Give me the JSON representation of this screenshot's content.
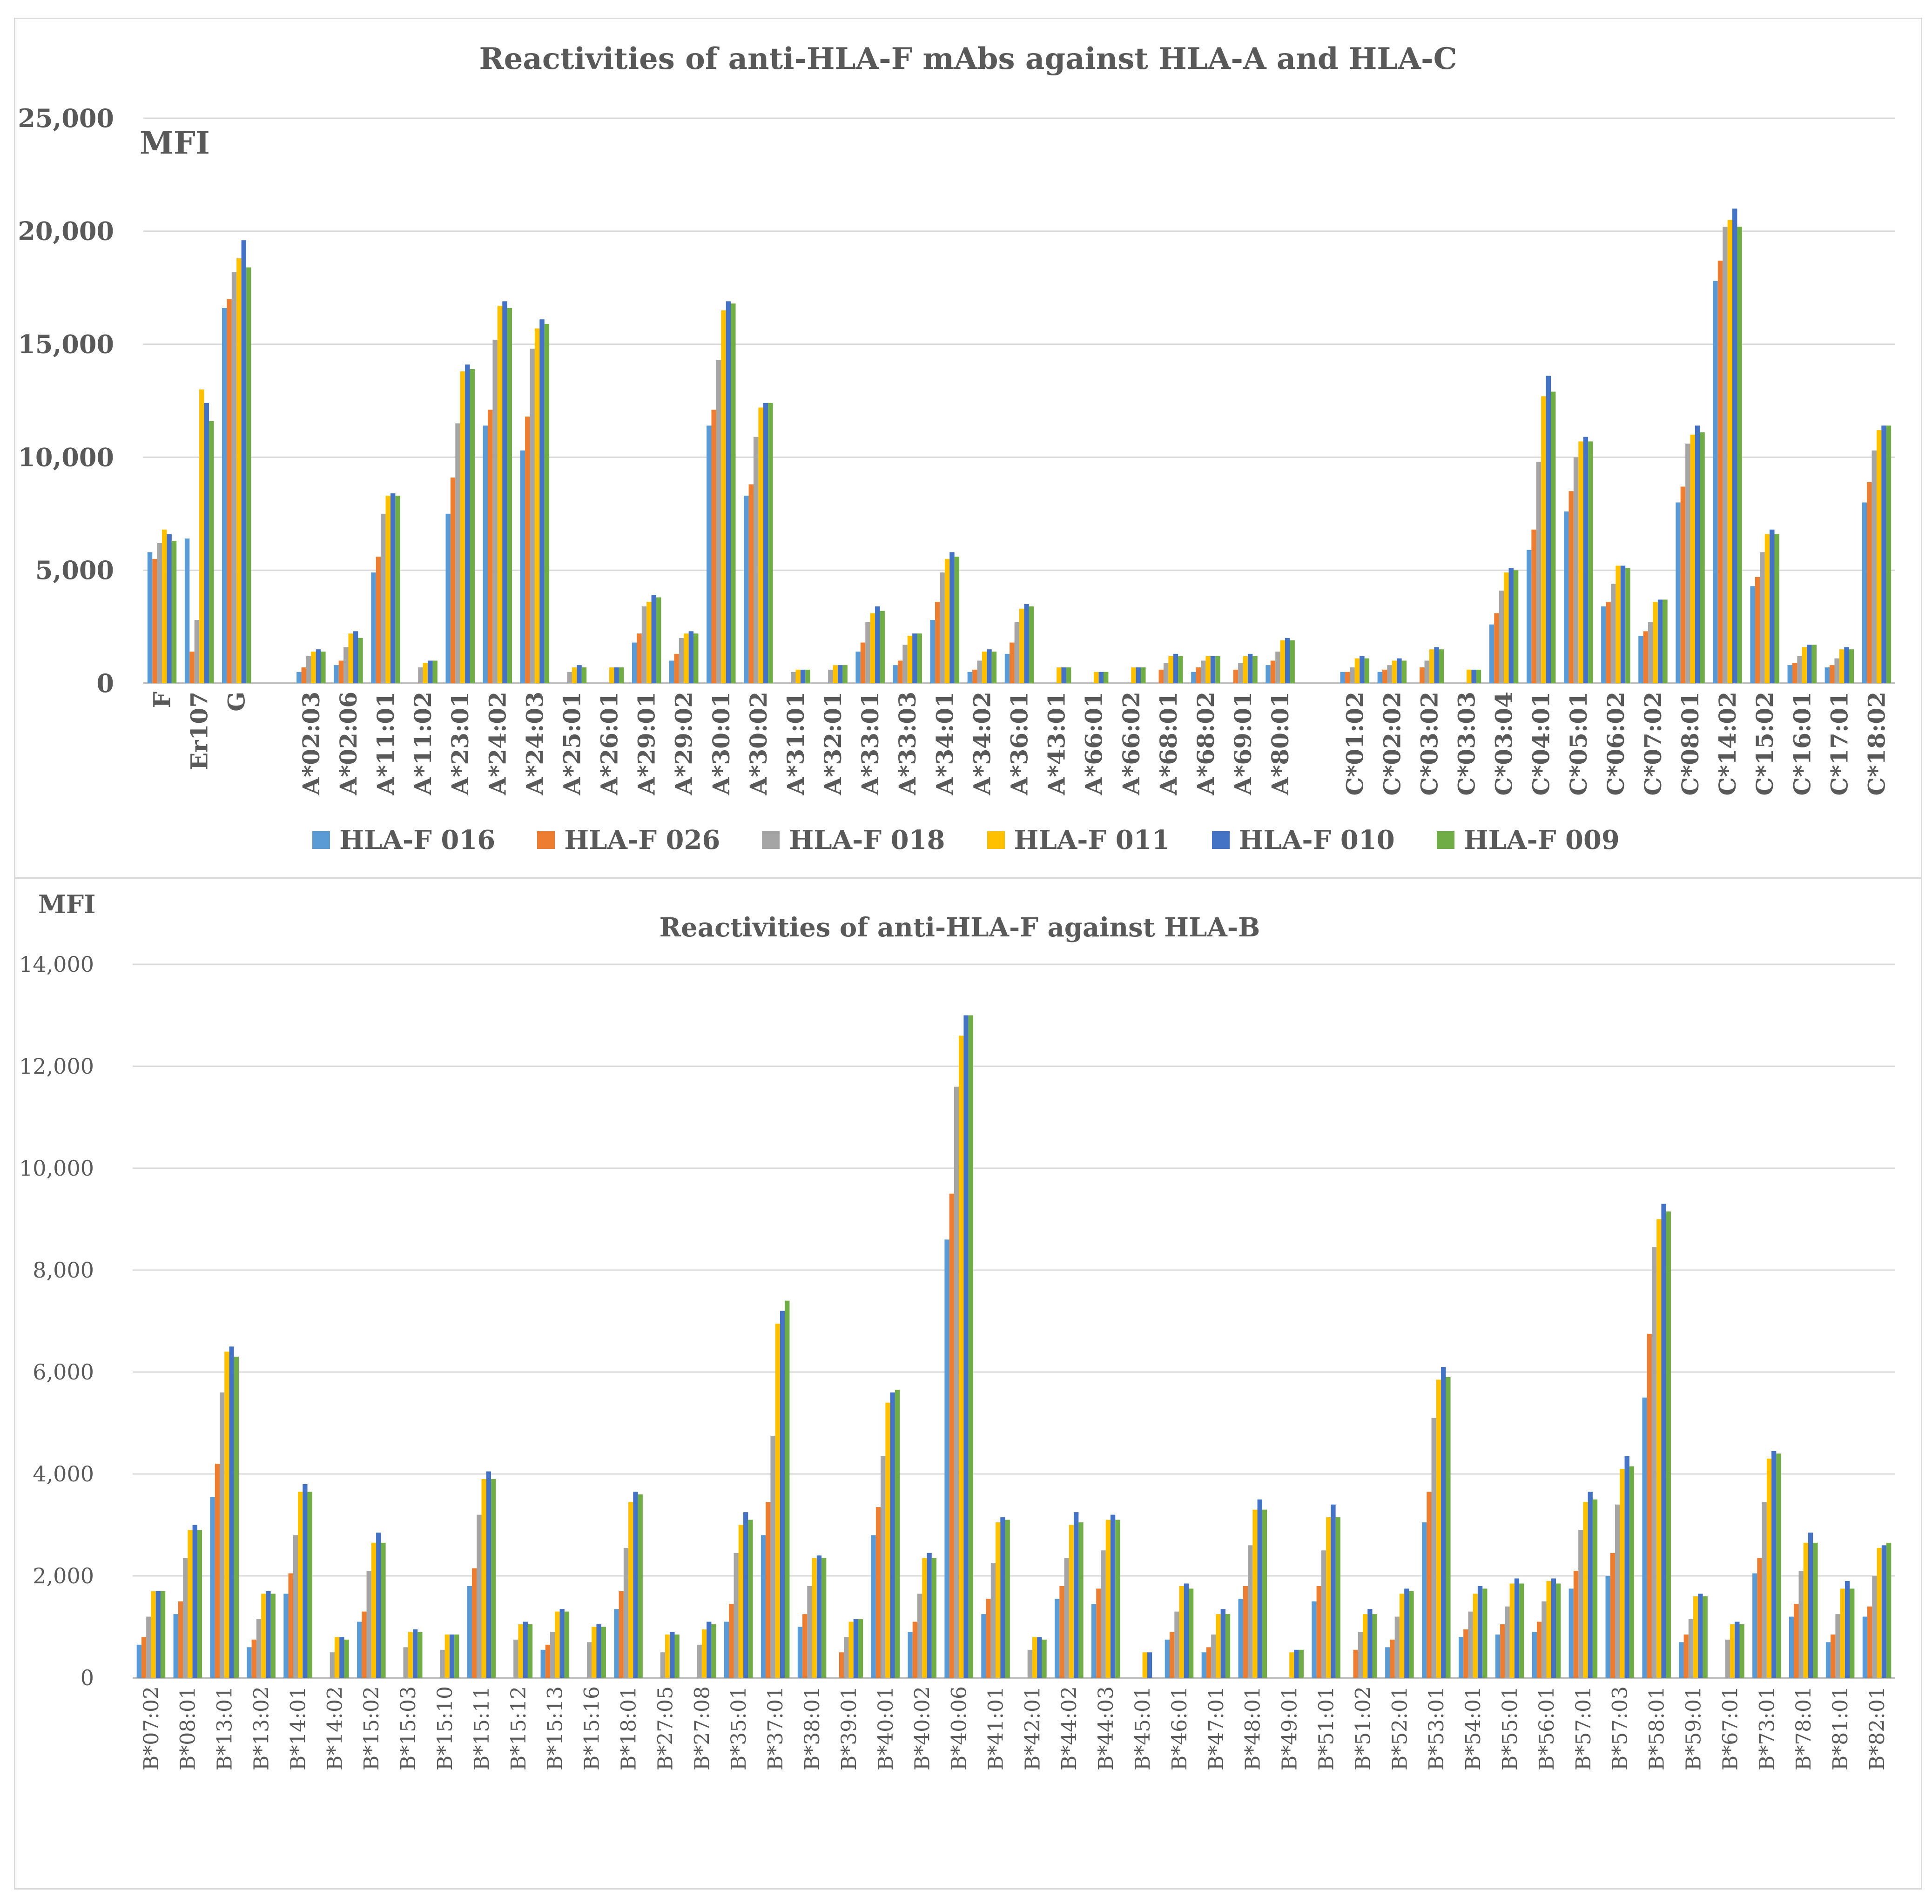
{
  "chart_data": [
    {
      "type": "bar",
      "title": "Reactivities of anti-HLA-F mAbs against HLA-A and HLA-C",
      "ylabel": "MFI",
      "xlabel": "",
      "ylim": [
        0,
        25000
      ],
      "yticks": [
        0,
        5000,
        10000,
        15000,
        20000,
        25000
      ],
      "ytick_labels": [
        "0",
        "5,000",
        "10,000",
        "15,000",
        "20,000",
        "25,000"
      ],
      "grid": true,
      "legend_position": "bottom",
      "series_names": [
        "HLA-F 016",
        "HLA-F 026",
        "HLA-F 018",
        "HLA-F 011",
        "HLA-F 010",
        "HLA-F 009"
      ],
      "series_colors": [
        "#5b9bd5",
        "#ed7d31",
        "#a5a5a5",
        "#ffc000",
        "#4472c4",
        "#70ad47"
      ],
      "categories": [
        "F",
        "Er107",
        "G",
        "",
        "A*02:03",
        "A*02:06",
        "A*11:01",
        "A*11:02",
        "A*23:01",
        "A*24:02",
        "A*24:03",
        "A*25:01",
        "A*26:01",
        "A*29:01",
        "A*29:02",
        "A*30:01",
        "A*30:02",
        "A*31:01",
        "A*32:01",
        "A*33:01",
        "A*33:03",
        "A*34:01",
        "A*34:02",
        "A*36:01",
        "A*43:01",
        "A*66:01",
        "A*66:02",
        "A*68:01",
        "A*68:02",
        "A*69:01",
        "A*80:01",
        "",
        "C*01:02",
        "C*02:02",
        "C*03:02",
        "C*03:03",
        "C*03:04",
        "C*04:01",
        "C*05:01",
        "C*06:02",
        "C*07:02",
        "C*08:01",
        "C*14:02",
        "C*15:02",
        "C*16:01",
        "C*17:01",
        "C*18:02"
      ],
      "values": [
        [
          5800,
          5500,
          6200,
          6800,
          6600,
          6300
        ],
        [
          6400,
          1400,
          2800,
          13000,
          12400,
          11600
        ],
        [
          16600,
          17000,
          18200,
          18800,
          19600,
          18400
        ],
        [
          0,
          0,
          0,
          0,
          0,
          0
        ],
        [
          500,
          700,
          1200,
          1400,
          1500,
          1400
        ],
        [
          800,
          1000,
          1600,
          2200,
          2300,
          2000
        ],
        [
          4900,
          5600,
          7500,
          8300,
          8400,
          8300
        ],
        [
          0,
          0,
          700,
          900,
          1000,
          1000
        ],
        [
          7500,
          9100,
          11500,
          13800,
          14100,
          13900
        ],
        [
          11400,
          12100,
          15200,
          16700,
          16900,
          16600
        ],
        [
          10300,
          11800,
          14800,
          15700,
          16100,
          15900
        ],
        [
          0,
          0,
          500,
          700,
          800,
          700
        ],
        [
          0,
          0,
          0,
          700,
          700,
          700
        ],
        [
          1800,
          2200,
          3400,
          3600,
          3900,
          3800
        ],
        [
          1000,
          1300,
          2000,
          2200,
          2300,
          2200
        ],
        [
          11400,
          12100,
          14300,
          16500,
          16900,
          16800
        ],
        [
          8300,
          8800,
          10900,
          12200,
          12400,
          12400
        ],
        [
          0,
          0,
          500,
          600,
          600,
          600
        ],
        [
          0,
          0,
          600,
          800,
          800,
          800
        ],
        [
          1400,
          1800,
          2700,
          3100,
          3400,
          3200
        ],
        [
          800,
          1000,
          1700,
          2100,
          2200,
          2200
        ],
        [
          2800,
          3600,
          4900,
          5500,
          5800,
          5600
        ],
        [
          500,
          600,
          1000,
          1400,
          1500,
          1400
        ],
        [
          1300,
          1800,
          2700,
          3300,
          3500,
          3400
        ],
        [
          0,
          0,
          0,
          700,
          700,
          700
        ],
        [
          0,
          0,
          0,
          500,
          500,
          500
        ],
        [
          0,
          0,
          0,
          700,
          700,
          700
        ],
        [
          0,
          600,
          900,
          1200,
          1300,
          1200
        ],
        [
          500,
          700,
          1000,
          1200,
          1200,
          1200
        ],
        [
          0,
          600,
          900,
          1200,
          1300,
          1200
        ],
        [
          800,
          1000,
          1400,
          1900,
          2000,
          1900
        ],
        [
          0,
          0,
          0,
          0,
          0,
          0
        ],
        [
          500,
          500,
          700,
          1100,
          1200,
          1100
        ],
        [
          500,
          600,
          800,
          1000,
          1100,
          1000
        ],
        [
          0,
          700,
          1000,
          1500,
          1600,
          1500
        ],
        [
          0,
          0,
          0,
          600,
          600,
          600
        ],
        [
          2600,
          3100,
          4100,
          4900,
          5100,
          5000
        ],
        [
          5900,
          6800,
          9800,
          12700,
          13600,
          12900
        ],
        [
          7600,
          8500,
          10000,
          10700,
          10900,
          10700
        ],
        [
          3400,
          3600,
          4400,
          5200,
          5200,
          5100
        ],
        [
          2100,
          2300,
          2700,
          3600,
          3700,
          3700
        ],
        [
          8000,
          8700,
          10600,
          11000,
          11400,
          11100
        ],
        [
          17800,
          18700,
          20200,
          20500,
          21000,
          20200
        ],
        [
          4300,
          4700,
          5800,
          6600,
          6800,
          6600
        ],
        [
          800,
          900,
          1200,
          1600,
          1700,
          1700
        ],
        [
          700,
          800,
          1100,
          1500,
          1600,
          1500
        ],
        [
          8000,
          8900,
          10300,
          11200,
          11400,
          11400
        ]
      ]
    },
    {
      "type": "bar",
      "title": "Reactivities of anti-HLA-F against HLA-B",
      "ylabel": "MFI",
      "xlabel": "",
      "ylim": [
        0,
        14000
      ],
      "yticks": [
        0,
        2000,
        4000,
        6000,
        8000,
        10000,
        12000,
        14000
      ],
      "ytick_labels": [
        "0",
        "2,000",
        "4,000",
        "6,000",
        "8,000",
        "10,000",
        "12,000",
        "14,000"
      ],
      "grid": true,
      "legend_position": "none",
      "series_names": [
        "HLA-F 016",
        "HLA-F 026",
        "HLA-F 018",
        "HLA-F 011",
        "HLA-F 010",
        "HLA-F 009"
      ],
      "series_colors": [
        "#5b9bd5",
        "#ed7d31",
        "#a5a5a5",
        "#ffc000",
        "#4472c4",
        "#70ad47"
      ],
      "categories": [
        "B*07:02",
        "B*08:01",
        "B*13:01",
        "B*13:02",
        "B*14:01",
        "B*14:02",
        "B*15:02",
        "B*15:03",
        "B*15:10",
        "B*15:11",
        "B*15:12",
        "B*15:13",
        "B*15:16",
        "B*18:01",
        "B*27:05",
        "B*27:08",
        "B*35:01",
        "B*37:01",
        "B*38:01",
        "B*39:01",
        "B*40:01",
        "B*40:02",
        "B*40:06",
        "B*41:01",
        "B*42:01",
        "B*44:02",
        "B*44:03",
        "B*45:01",
        "B*46:01",
        "B*47:01",
        "B*48:01",
        "B*49:01",
        "B*51:01",
        "B*51:02",
        "B*52:01",
        "B*53:01",
        "B*54:01",
        "B*55:01",
        "B*56:01",
        "B*57:01",
        "B*57:03",
        "B*58:01",
        "B*59:01",
        "B*67:01",
        "B*73:01",
        "B*78:01",
        "B*81:01",
        "B*82:01"
      ],
      "values": [
        [
          650,
          800,
          1200,
          1700,
          1700,
          1700
        ],
        [
          1250,
          1500,
          2350,
          2900,
          3000,
          2900
        ],
        [
          3550,
          4200,
          5600,
          6400,
          6500,
          6300
        ],
        [
          600,
          750,
          1150,
          1650,
          1700,
          1650
        ],
        [
          1650,
          2050,
          2800,
          3650,
          3800,
          3650
        ],
        [
          0,
          0,
          500,
          800,
          800,
          750
        ],
        [
          1100,
          1300,
          2100,
          2650,
          2850,
          2650
        ],
        [
          0,
          0,
          600,
          900,
          950,
          900
        ],
        [
          0,
          0,
          550,
          850,
          850,
          850
        ],
        [
          1800,
          2150,
          3200,
          3900,
          4050,
          3900
        ],
        [
          0,
          0,
          750,
          1050,
          1100,
          1050
        ],
        [
          550,
          650,
          900,
          1300,
          1350,
          1300
        ],
        [
          0,
          0,
          700,
          1000,
          1050,
          1000
        ],
        [
          1350,
          1700,
          2550,
          3450,
          3650,
          3600
        ],
        [
          0,
          0,
          500,
          850,
          900,
          850
        ],
        [
          0,
          0,
          650,
          950,
          1100,
          1050
        ],
        [
          1100,
          1450,
          2450,
          3000,
          3250,
          3100
        ],
        [
          2800,
          3450,
          4750,
          6950,
          7200,
          7400
        ],
        [
          1000,
          1250,
          1800,
          2350,
          2400,
          2350
        ],
        [
          0,
          500,
          800,
          1100,
          1150,
          1150
        ],
        [
          2800,
          3350,
          4350,
          5400,
          5600,
          5650
        ],
        [
          900,
          1100,
          1650,
          2350,
          2450,
          2350
        ],
        [
          8600,
          9500,
          11600,
          12600,
          13000,
          13000
        ],
        [
          1250,
          1550,
          2250,
          3050,
          3150,
          3100
        ],
        [
          0,
          0,
          550,
          800,
          800,
          750
        ],
        [
          1550,
          1800,
          2350,
          3000,
          3250,
          3050
        ],
        [
          1450,
          1750,
          2500,
          3100,
          3200,
          3100
        ],
        [
          0,
          0,
          0,
          500,
          500,
          0
        ],
        [
          750,
          900,
          1300,
          1800,
          1850,
          1750
        ],
        [
          500,
          600,
          850,
          1250,
          1350,
          1250
        ],
        [
          1550,
          1800,
          2600,
          3300,
          3500,
          3300
        ],
        [
          0,
          0,
          0,
          500,
          550,
          550
        ],
        [
          1500,
          1800,
          2500,
          3150,
          3400,
          3150
        ],
        [
          0,
          550,
          900,
          1250,
          1350,
          1250
        ],
        [
          600,
          750,
          1200,
          1650,
          1750,
          1700
        ],
        [
          3050,
          3650,
          5100,
          5850,
          6100,
          5900
        ],
        [
          800,
          950,
          1300,
          1650,
          1800,
          1750
        ],
        [
          850,
          1050,
          1400,
          1850,
          1950,
          1850
        ],
        [
          900,
          1100,
          1500,
          1900,
          1950,
          1850
        ],
        [
          1750,
          2100,
          2900,
          3450,
          3650,
          3500
        ],
        [
          2000,
          2450,
          3400,
          4100,
          4350,
          4150
        ],
        [
          5500,
          6750,
          8450,
          9000,
          9300,
          9150
        ],
        [
          700,
          850,
          1150,
          1600,
          1650,
          1600
        ],
        [
          0,
          0,
          750,
          1050,
          1100,
          1050
        ],
        [
          2050,
          2350,
          3450,
          4300,
          4450,
          4400
        ],
        [
          1200,
          1450,
          2100,
          2650,
          2850,
          2650
        ],
        [
          700,
          850,
          1250,
          1750,
          1900,
          1750
        ],
        [
          1200,
          1400,
          2000,
          2550,
          2600,
          2650
        ]
      ]
    }
  ]
}
